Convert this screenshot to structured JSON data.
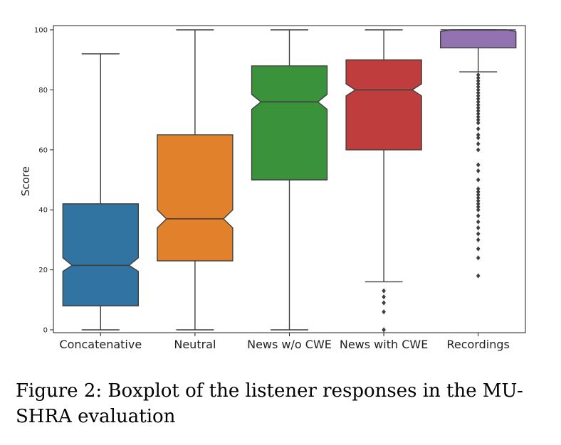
{
  "chart_data": {
    "type": "boxplot",
    "title": "",
    "xlabel": "",
    "ylabel": "Score",
    "ylim": [
      0,
      100
    ],
    "yticks": [
      0,
      20,
      40,
      60,
      80,
      100
    ],
    "notched": true,
    "grid": false,
    "categories": [
      "Concatenative",
      "Neutral",
      "News w/o CWE",
      "News with CWE",
      "Recordings"
    ],
    "series": [
      {
        "category": "Concatenative",
        "color": "#3274a1",
        "whisker_low": 0,
        "q1": 8,
        "median": 21.5,
        "q3": 42,
        "whisker_high": 92,
        "notch": [
          19.5,
          24
        ],
        "outliers": []
      },
      {
        "category": "Neutral",
        "color": "#e1812c",
        "whisker_low": 0,
        "q1": 23,
        "median": 37,
        "q3": 65,
        "whisker_high": 100,
        "notch": [
          34,
          40
        ],
        "outliers": []
      },
      {
        "category": "News w/o CWE",
        "color": "#3a923a",
        "whisker_low": 0,
        "q1": 50,
        "median": 76,
        "q3": 88,
        "whisker_high": 100,
        "notch": [
          73.5,
          78.5
        ],
        "outliers": []
      },
      {
        "category": "News with CWE",
        "color": "#c03d3e",
        "whisker_low": 16,
        "q1": 60,
        "median": 80,
        "q3": 90,
        "whisker_high": 100,
        "notch": [
          78,
          82
        ],
        "outliers": [
          0,
          6,
          9,
          11,
          13
        ]
      },
      {
        "category": "Recordings",
        "color": "#9372b2",
        "whisker_low": 86,
        "q1": 94,
        "median": 100,
        "q3": 100,
        "whisker_high": 100,
        "notch": [
          99.4,
          100
        ],
        "outliers": [
          18,
          24,
          27,
          30,
          32,
          34,
          36,
          38,
          40,
          41,
          42,
          43,
          44,
          45,
          46,
          47,
          50,
          53,
          55,
          60,
          62,
          64,
          65,
          67,
          69,
          70,
          71,
          72,
          73,
          74,
          75,
          76,
          77,
          78,
          79,
          80,
          81,
          82,
          83,
          84,
          85
        ]
      }
    ]
  },
  "caption": "Figure 2: Boxplot of the listener responses in the MU-SHRA evaluation"
}
